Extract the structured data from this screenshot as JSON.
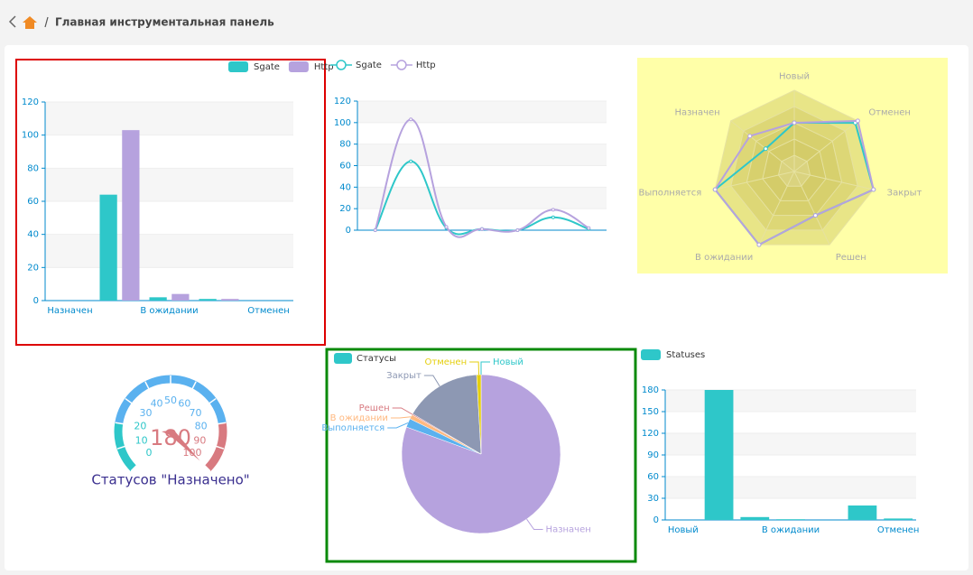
{
  "breadcrumb": "Главная инструментальная панель",
  "chart_data": [
    {
      "type": "bar",
      "categories": [
        "Назначен",
        null,
        "В ожидании",
        null,
        "Отменен"
      ],
      "series": [
        {
          "name": "Sgate",
          "color": "#2ec7c9",
          "values": [
            0,
            64,
            2,
            1,
            0
          ]
        },
        {
          "name": "Http",
          "color": "#b6a2de",
          "values": [
            0,
            103,
            4,
            1,
            0
          ]
        }
      ],
      "ylim": [
        0,
        120
      ],
      "yticks": [
        0,
        20,
        40,
        60,
        80,
        100,
        120
      ],
      "grid": true
    },
    {
      "type": "line",
      "categories": [
        null,
        null,
        null,
        null,
        null,
        null,
        null
      ],
      "series": [
        {
          "name": "Sgate",
          "color": "#2ec7c9",
          "values": [
            0,
            64,
            2,
            1,
            0,
            12,
            1
          ]
        },
        {
          "name": "Http",
          "color": "#b6a2de",
          "values": [
            0,
            103,
            3,
            1,
            0,
            19,
            2
          ]
        }
      ],
      "ylim": [
        0,
        120
      ],
      "yticks": [
        0,
        20,
        40,
        60,
        80,
        100,
        120
      ],
      "grid": true
    },
    {
      "type": "radar",
      "indicators": [
        "Новый",
        "Отменен",
        "Закрыт",
        "Решен",
        "В ожидании",
        "Выполняется",
        "Назначен"
      ],
      "max": 100,
      "background": "#ffffa8",
      "series": [
        {
          "name": "Sgate",
          "color": "#2ec7c9",
          "values": [
            60,
            96,
            100,
            60,
            100,
            100,
            45
          ]
        },
        {
          "name": "Http",
          "color": "#b6a2de",
          "values": [
            60,
            100,
            100,
            60,
            100,
            100,
            70
          ]
        }
      ]
    },
    {
      "type": "gauge",
      "title": "Статусов \"Назначено\"",
      "value": 180,
      "min": 0,
      "max": 100,
      "ticks": [
        0,
        10,
        20,
        30,
        40,
        50,
        60,
        70,
        80,
        90,
        100
      ],
      "axis_colors": [
        [
          0.2,
          "#2ec7c9"
        ],
        [
          0.8,
          "#5ab1ef"
        ],
        [
          1,
          "#d87a80"
        ]
      ]
    },
    {
      "type": "pie",
      "legend": "Статусы",
      "categories": [
        "Новый",
        "Назначен",
        "Выполняется",
        "В ожидании",
        "Решен",
        "Закрыт",
        "Отменен"
      ],
      "values": [
        0,
        180,
        4,
        2,
        0.5,
        35,
        2
      ],
      "colors": [
        "#2ec7c9",
        "#b6a2de",
        "#5ab1ef",
        "#ffb980",
        "#d87a80",
        "#8d98b3",
        "#e5cf0d"
      ]
    },
    {
      "type": "bar",
      "categories": [
        "Новый",
        null,
        null,
        "В ожидании",
        null,
        null,
        "Отменен"
      ],
      "series": [
        {
          "name": "Statuses",
          "color": "#2ec7c9",
          "values": [
            0,
            180,
            4,
            1,
            0,
            20,
            2
          ]
        }
      ],
      "ylim": [
        0,
        180
      ],
      "yticks": [
        0,
        30,
        60,
        90,
        120,
        150,
        180
      ],
      "grid": true
    }
  ]
}
